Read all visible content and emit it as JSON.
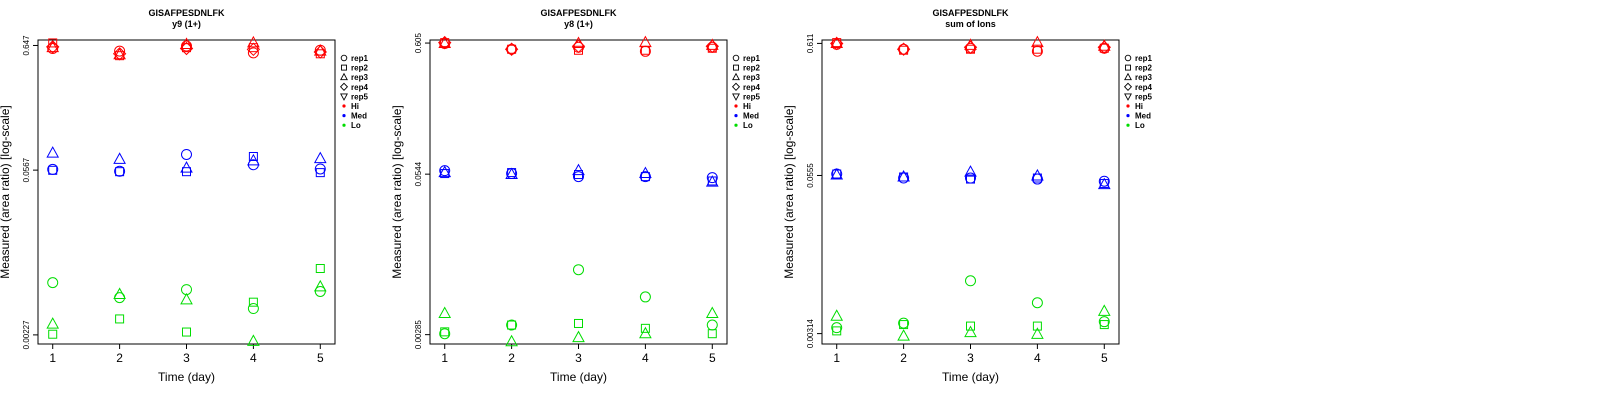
{
  "chart_data": [
    {
      "type": "scatter",
      "title": "GISAFPESDNLFK",
      "subtitle": "y9 (1+)",
      "xlabel": "Time (day)",
      "ylabel": "Measured (area ratio) [log-scale]",
      "x_ticks": [
        "1",
        "2",
        "3",
        "4",
        "5"
      ],
      "y_ticks": [
        "0.00227",
        "0.0567",
        "0.647"
      ],
      "y_tick_values": [
        0.00227,
        0.0567,
        0.647
      ],
      "ylim": [
        0.0019,
        0.72
      ],
      "y_scale": "log",
      "legend": [
        "rep1",
        "rep2",
        "rep3",
        "rep4",
        "rep5",
        "Hi",
        "Med",
        "Lo"
      ],
      "series": [
        {
          "level": "Hi",
          "color": "#ff0000",
          "points": [
            {
              "x": 1,
              "y": 0.61,
              "rep": "rep1"
            },
            {
              "x": 1,
              "y": 0.68,
              "rep": "rep2"
            },
            {
              "x": 1,
              "y": 0.62,
              "rep": "rep3"
            },
            {
              "x": 1,
              "y": 0.63,
              "rep": "rep4"
            },
            {
              "x": 2,
              "y": 0.58,
              "rep": "rep1"
            },
            {
              "x": 2,
              "y": 0.53,
              "rep": "rep2"
            },
            {
              "x": 2,
              "y": 0.54,
              "rep": "rep3"
            },
            {
              "x": 2,
              "y": 0.55,
              "rep": "rep4"
            },
            {
              "x": 3,
              "y": 0.64,
              "rep": "rep1"
            },
            {
              "x": 3,
              "y": 0.62,
              "rep": "rep2"
            },
            {
              "x": 3,
              "y": 0.66,
              "rep": "rep3"
            },
            {
              "x": 3,
              "y": 0.61,
              "rep": "rep4"
            },
            {
              "x": 4,
              "y": 0.56,
              "rep": "rep1"
            },
            {
              "x": 4,
              "y": 0.62,
              "rep": "rep2"
            },
            {
              "x": 4,
              "y": 0.68,
              "rep": "rep3"
            },
            {
              "x": 4,
              "y": 0.6,
              "rep": "rep4"
            },
            {
              "x": 5,
              "y": 0.59,
              "rep": "rep1"
            },
            {
              "x": 5,
              "y": 0.55,
              "rep": "rep2"
            },
            {
              "x": 5,
              "y": 0.58,
              "rep": "rep3"
            },
            {
              "x": 5,
              "y": 0.57,
              "rep": "rep4"
            }
          ]
        },
        {
          "level": "Med",
          "color": "#0000ff",
          "points": [
            {
              "x": 1,
              "y": 0.0575,
              "rep": "rep1"
            },
            {
              "x": 1,
              "y": 0.0565,
              "rep": "rep2"
            },
            {
              "x": 1,
              "y": 0.079,
              "rep": "rep3"
            },
            {
              "x": 2,
              "y": 0.0555,
              "rep": "rep1"
            },
            {
              "x": 2,
              "y": 0.055,
              "rep": "rep2"
            },
            {
              "x": 2,
              "y": 0.07,
              "rep": "rep3"
            },
            {
              "x": 3,
              "y": 0.077,
              "rep": "rep1"
            },
            {
              "x": 3,
              "y": 0.055,
              "rep": "rep2"
            },
            {
              "x": 3,
              "y": 0.059,
              "rep": "rep3"
            },
            {
              "x": 4,
              "y": 0.063,
              "rep": "rep1"
            },
            {
              "x": 4,
              "y": 0.074,
              "rep": "rep2"
            },
            {
              "x": 4,
              "y": 0.068,
              "rep": "rep3"
            },
            {
              "x": 5,
              "y": 0.058,
              "rep": "rep1"
            },
            {
              "x": 5,
              "y": 0.054,
              "rep": "rep2"
            },
            {
              "x": 5,
              "y": 0.071,
              "rep": "rep3"
            }
          ]
        },
        {
          "level": "Lo",
          "color": "#00dd00",
          "points": [
            {
              "x": 1,
              "y": 0.0063,
              "rep": "rep1"
            },
            {
              "x": 1,
              "y": 0.0023,
              "rep": "rep2"
            },
            {
              "x": 1,
              "y": 0.0028,
              "rep": "rep3"
            },
            {
              "x": 2,
              "y": 0.0047,
              "rep": "rep1"
            },
            {
              "x": 2,
              "y": 0.0031,
              "rep": "rep2"
            },
            {
              "x": 2,
              "y": 0.005,
              "rep": "rep3"
            },
            {
              "x": 3,
              "y": 0.0055,
              "rep": "rep1"
            },
            {
              "x": 3,
              "y": 0.0024,
              "rep": "rep2"
            },
            {
              "x": 3,
              "y": 0.0045,
              "rep": "rep3"
            },
            {
              "x": 4,
              "y": 0.0038,
              "rep": "rep1"
            },
            {
              "x": 4,
              "y": 0.0043,
              "rep": "rep2"
            },
            {
              "x": 4,
              "y": 0.002,
              "rep": "rep3"
            },
            {
              "x": 5,
              "y": 0.0053,
              "rep": "rep1"
            },
            {
              "x": 5,
              "y": 0.0083,
              "rep": "rep2"
            },
            {
              "x": 5,
              "y": 0.0058,
              "rep": "rep3"
            }
          ]
        }
      ]
    },
    {
      "type": "scatter",
      "title": "GISAFPESDNLFK",
      "subtitle": "y8 (1+)",
      "xlabel": "Time (day)",
      "ylabel": "Measured (area ratio) [log-scale]",
      "x_ticks": [
        "1",
        "2",
        "3",
        "4",
        "5"
      ],
      "y_ticks": [
        "0.00285",
        "0.0544",
        "0.605"
      ],
      "y_tick_values": [
        0.00285,
        0.0544,
        0.605
      ],
      "ylim": [
        0.0024,
        0.64
      ],
      "y_scale": "log",
      "legend": [
        "rep1",
        "rep2",
        "rep3",
        "rep4",
        "rep5",
        "Hi",
        "Med",
        "Lo"
      ],
      "series": [
        {
          "level": "Hi",
          "color": "#ff0000",
          "points": [
            {
              "x": 1,
              "y": 0.6,
              "rep": "rep1"
            },
            {
              "x": 1,
              "y": 0.61,
              "rep": "rep2"
            },
            {
              "x": 1,
              "y": 0.6,
              "rep": "rep3"
            },
            {
              "x": 1,
              "y": 0.61,
              "rep": "rep4"
            },
            {
              "x": 2,
              "y": 0.54,
              "rep": "rep1"
            },
            {
              "x": 2,
              "y": 0.54,
              "rep": "rep2"
            },
            {
              "x": 2,
              "y": 0.54,
              "rep": "rep4"
            },
            {
              "x": 3,
              "y": 0.56,
              "rep": "rep1"
            },
            {
              "x": 3,
              "y": 0.53,
              "rep": "rep2"
            },
            {
              "x": 3,
              "y": 0.6,
              "rep": "rep3"
            },
            {
              "x": 3,
              "y": 0.57,
              "rep": "rep4"
            },
            {
              "x": 4,
              "y": 0.52,
              "rep": "rep1"
            },
            {
              "x": 4,
              "y": 0.53,
              "rep": "rep2"
            },
            {
              "x": 4,
              "y": 0.61,
              "rep": "rep3"
            },
            {
              "x": 5,
              "y": 0.56,
              "rep": "rep1"
            },
            {
              "x": 5,
              "y": 0.55,
              "rep": "rep2"
            },
            {
              "x": 5,
              "y": 0.58,
              "rep": "rep3"
            },
            {
              "x": 5,
              "y": 0.57,
              "rep": "rep4"
            }
          ]
        },
        {
          "level": "Med",
          "color": "#0000ff",
          "points": [
            {
              "x": 1,
              "y": 0.058,
              "rep": "rep1"
            },
            {
              "x": 1,
              "y": 0.055,
              "rep": "rep2"
            },
            {
              "x": 1,
              "y": 0.056,
              "rep": "rep3"
            },
            {
              "x": 2,
              "y": 0.055,
              "rep": "rep1"
            },
            {
              "x": 2,
              "y": 0.056,
              "rep": "rep2"
            },
            {
              "x": 2,
              "y": 0.054,
              "rep": "rep3"
            },
            {
              "x": 3,
              "y": 0.052,
              "rep": "rep1"
            },
            {
              "x": 3,
              "y": 0.054,
              "rep": "rep2"
            },
            {
              "x": 3,
              "y": 0.058,
              "rep": "rep3"
            },
            {
              "x": 4,
              "y": 0.052,
              "rep": "rep1"
            },
            {
              "x": 4,
              "y": 0.052,
              "rep": "rep2"
            },
            {
              "x": 4,
              "y": 0.055,
              "rep": "rep3"
            },
            {
              "x": 5,
              "y": 0.051,
              "rep": "rep1"
            },
            {
              "x": 5,
              "y": 0.048,
              "rep": "rep2"
            },
            {
              "x": 5,
              "y": 0.047,
              "rep": "rep3"
            }
          ]
        },
        {
          "level": "Lo",
          "color": "#00dd00",
          "points": [
            {
              "x": 1,
              "y": 0.0029,
              "rep": "rep1"
            },
            {
              "x": 1,
              "y": 0.003,
              "rep": "rep2"
            },
            {
              "x": 1,
              "y": 0.0042,
              "rep": "rep3"
            },
            {
              "x": 2,
              "y": 0.0034,
              "rep": "rep1"
            },
            {
              "x": 2,
              "y": 0.0034,
              "rep": "rep2"
            },
            {
              "x": 2,
              "y": 0.0025,
              "rep": "rep3"
            },
            {
              "x": 3,
              "y": 0.0094,
              "rep": "rep1"
            },
            {
              "x": 3,
              "y": 0.0035,
              "rep": "rep2"
            },
            {
              "x": 3,
              "y": 0.0027,
              "rep": "rep3"
            },
            {
              "x": 4,
              "y": 0.0057,
              "rep": "rep1"
            },
            {
              "x": 4,
              "y": 0.0032,
              "rep": "rep2"
            },
            {
              "x": 4,
              "y": 0.0029,
              "rep": "rep3"
            },
            {
              "x": 5,
              "y": 0.0034,
              "rep": "rep1"
            },
            {
              "x": 5,
              "y": 0.0029,
              "rep": "rep2"
            },
            {
              "x": 5,
              "y": 0.0042,
              "rep": "rep3"
            }
          ]
        }
      ]
    },
    {
      "type": "scatter",
      "title": "GISAFPESDNLFK",
      "subtitle": "sum of Ions",
      "xlabel": "Time (day)",
      "ylabel": "Measured (area ratio) [log-scale]",
      "x_ticks": [
        "1",
        "2",
        "3",
        "4",
        "5"
      ],
      "y_ticks": [
        "0.00314",
        "0.0555",
        "0.611"
      ],
      "y_tick_values": [
        0.00314,
        0.0555,
        0.611
      ],
      "ylim": [
        0.0026,
        0.65
      ],
      "y_scale": "log",
      "legend": [
        "rep1",
        "rep2",
        "rep3",
        "rep4",
        "rep5",
        "Hi",
        "Med",
        "Lo"
      ],
      "series": [
        {
          "level": "Hi",
          "color": "#ff0000",
          "points": [
            {
              "x": 1,
              "y": 0.6,
              "rep": "rep1"
            },
            {
              "x": 1,
              "y": 0.62,
              "rep": "rep2"
            },
            {
              "x": 1,
              "y": 0.61,
              "rep": "rep3"
            },
            {
              "x": 1,
              "y": 0.61,
              "rep": "rep4"
            },
            {
              "x": 2,
              "y": 0.55,
              "rep": "rep1"
            },
            {
              "x": 2,
              "y": 0.54,
              "rep": "rep2"
            },
            {
              "x": 2,
              "y": 0.55,
              "rep": "rep4"
            },
            {
              "x": 3,
              "y": 0.56,
              "rep": "rep1"
            },
            {
              "x": 3,
              "y": 0.55,
              "rep": "rep2"
            },
            {
              "x": 3,
              "y": 0.59,
              "rep": "rep3"
            },
            {
              "x": 3,
              "y": 0.57,
              "rep": "rep4"
            },
            {
              "x": 4,
              "y": 0.53,
              "rep": "rep1"
            },
            {
              "x": 4,
              "y": 0.55,
              "rep": "rep2"
            },
            {
              "x": 4,
              "y": 0.62,
              "rep": "rep3"
            },
            {
              "x": 5,
              "y": 0.56,
              "rep": "rep1"
            },
            {
              "x": 5,
              "y": 0.56,
              "rep": "rep2"
            },
            {
              "x": 5,
              "y": 0.58,
              "rep": "rep3"
            },
            {
              "x": 5,
              "y": 0.57,
              "rep": "rep4"
            }
          ]
        },
        {
          "level": "Med",
          "color": "#0000ff",
          "points": [
            {
              "x": 1,
              "y": 0.057,
              "rep": "rep1"
            },
            {
              "x": 1,
              "y": 0.057,
              "rep": "rep2"
            },
            {
              "x": 1,
              "y": 0.056,
              "rep": "rep3"
            },
            {
              "x": 2,
              "y": 0.053,
              "rep": "rep1"
            },
            {
              "x": 2,
              "y": 0.054,
              "rep": "rep2"
            },
            {
              "x": 2,
              "y": 0.054,
              "rep": "rep3"
            },
            {
              "x": 3,
              "y": 0.053,
              "rep": "rep1"
            },
            {
              "x": 3,
              "y": 0.052,
              "rep": "rep2"
            },
            {
              "x": 3,
              "y": 0.059,
              "rep": "rep3"
            },
            {
              "x": 4,
              "y": 0.052,
              "rep": "rep1"
            },
            {
              "x": 4,
              "y": 0.053,
              "rep": "rep2"
            },
            {
              "x": 4,
              "y": 0.055,
              "rep": "rep3"
            },
            {
              "x": 5,
              "y": 0.05,
              "rep": "rep1"
            },
            {
              "x": 5,
              "y": 0.048,
              "rep": "rep2"
            },
            {
              "x": 5,
              "y": 0.047,
              "rep": "rep3"
            }
          ]
        },
        {
          "level": "Lo",
          "color": "#00dd00",
          "points": [
            {
              "x": 1,
              "y": 0.0035,
              "rep": "rep1"
            },
            {
              "x": 1,
              "y": 0.0033,
              "rep": "rep2"
            },
            {
              "x": 1,
              "y": 0.0043,
              "rep": "rep3"
            },
            {
              "x": 2,
              "y": 0.0038,
              "rep": "rep1"
            },
            {
              "x": 2,
              "y": 0.0037,
              "rep": "rep2"
            },
            {
              "x": 2,
              "y": 0.003,
              "rep": "rep3"
            },
            {
              "x": 3,
              "y": 0.0082,
              "rep": "rep1"
            },
            {
              "x": 3,
              "y": 0.0036,
              "rep": "rep2"
            },
            {
              "x": 3,
              "y": 0.0032,
              "rep": "rep3"
            },
            {
              "x": 4,
              "y": 0.0055,
              "rep": "rep1"
            },
            {
              "x": 4,
              "y": 0.0036,
              "rep": "rep2"
            },
            {
              "x": 4,
              "y": 0.0031,
              "rep": "rep3"
            },
            {
              "x": 5,
              "y": 0.0039,
              "rep": "rep1"
            },
            {
              "x": 5,
              "y": 0.0037,
              "rep": "rep2"
            },
            {
              "x": 5,
              "y": 0.0047,
              "rep": "rep3"
            }
          ]
        }
      ]
    }
  ]
}
